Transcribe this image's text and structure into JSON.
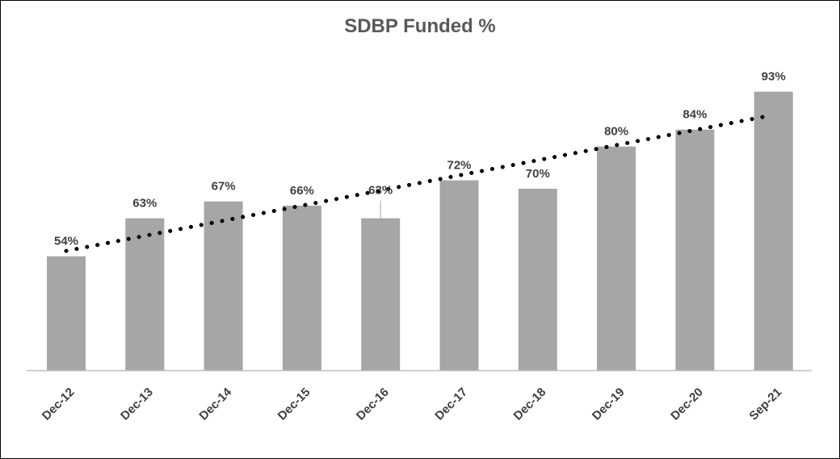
{
  "chart_data": {
    "type": "bar",
    "title": "SDBP Funded %",
    "xlabel": "",
    "ylabel": "",
    "categories": [
      "Dec-12",
      "Dec-13",
      "Dec-14",
      "Dec-15",
      "Dec-16",
      "Dec-17",
      "Dec-18",
      "Dec-19",
      "Dec-20",
      "Sep-21"
    ],
    "values": [
      54,
      63,
      67,
      66,
      63,
      72,
      70,
      80,
      84,
      93
    ],
    "data_labels": [
      "54%",
      "63%",
      "67%",
      "66%",
      "63%",
      "72%",
      "70%",
      "80%",
      "84%",
      "93%"
    ],
    "ylim": [
      27,
      100
    ],
    "grid": false,
    "legend": "none",
    "trendline": {
      "type": "linear",
      "style": "dotted",
      "color": "#000000"
    },
    "bar_color": "#a6a6a6",
    "axis_color": "#bfbfbf",
    "text_color": "#404040"
  }
}
